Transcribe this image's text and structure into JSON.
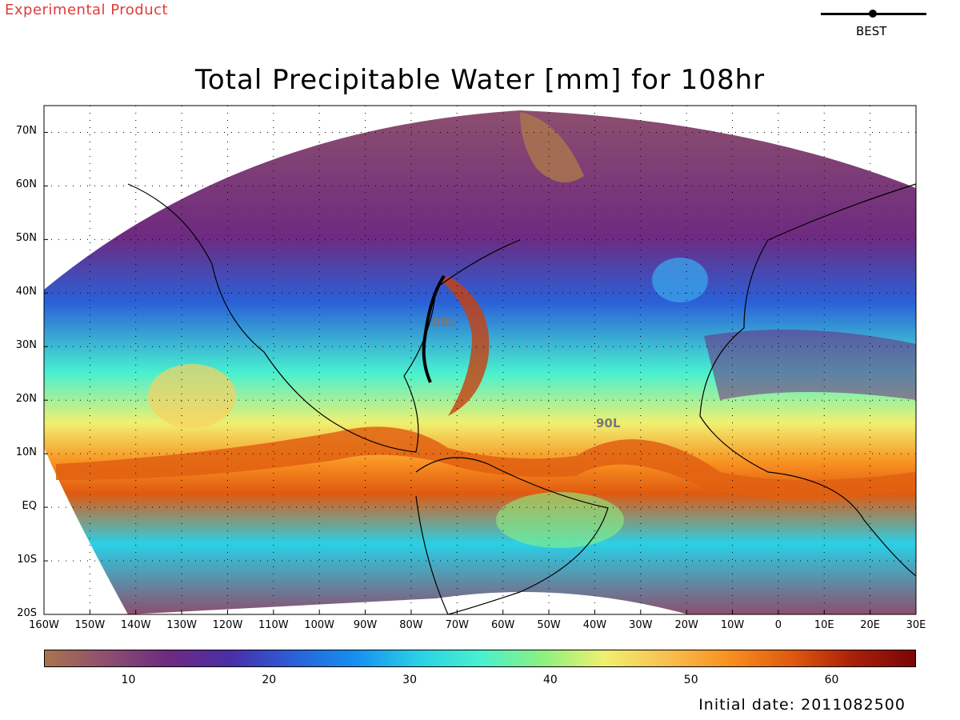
{
  "header": {
    "experimental_label": "Experimental Product",
    "legend_best_label": "BEST",
    "title": "Total Precipitable Water [mm] for 108hr"
  },
  "map": {
    "lat_labels": [
      "70N",
      "60N",
      "50N",
      "40N",
      "30N",
      "20N",
      "10N",
      "EQ",
      "10S",
      "20S"
    ],
    "lon_labels": [
      "160W",
      "150W",
      "140W",
      "130W",
      "120W",
      "110W",
      "100W",
      "90W",
      "80W",
      "70W",
      "60W",
      "50W",
      "40W",
      "30W",
      "20W",
      "10W",
      "0",
      "10E",
      "20E",
      "30E"
    ],
    "storm_labels": [
      "09L",
      "90L"
    ]
  },
  "colorbar": {
    "ticks": [
      "10",
      "20",
      "30",
      "40",
      "50",
      "60"
    ],
    "range": [
      4,
      66
    ],
    "stops": [
      "#a9744e",
      "#8c4f6e",
      "#6e2a80",
      "#4a2ea8",
      "#2a60d8",
      "#1590f0",
      "#2ad0e6",
      "#48f0d0",
      "#8cf080",
      "#f0f070",
      "#f8c050",
      "#f89020",
      "#e05a10",
      "#a82008",
      "#7a0606"
    ]
  },
  "footer": {
    "initial_date": "Initial date: 2011082500"
  }
}
